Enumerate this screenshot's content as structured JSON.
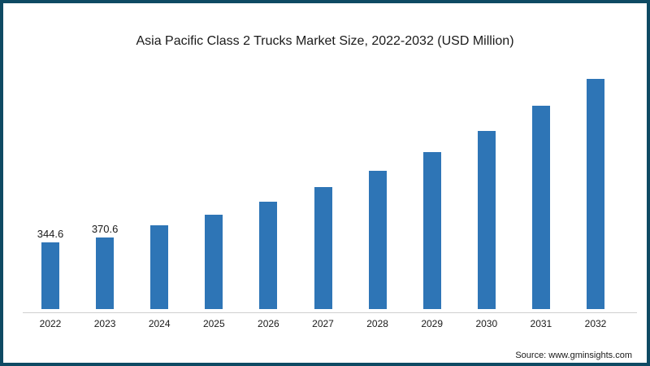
{
  "chart_data": {
    "type": "bar",
    "title": "Asia Pacific Class 2 Trucks Market Size, 2022-2032 (USD Million)",
    "categories": [
      "2022",
      "2023",
      "2024",
      "2025",
      "2026",
      "2027",
      "2028",
      "2029",
      "2030",
      "2031",
      "2032"
    ],
    "values": [
      344.6,
      370.6,
      433,
      487,
      555,
      630,
      714,
      811,
      920,
      1050,
      1189
    ],
    "data_labels": {
      "2022": "344.6",
      "2023": "370.6"
    },
    "xlabel": "",
    "ylabel": "",
    "ylim": [
      0,
      1300
    ],
    "grid": false,
    "legend": null,
    "bar_color": "#2e75b6"
  },
  "source": "Source: www.gminsights.com",
  "colors": {
    "border": "#0e4a63",
    "bar": "#2e75b6",
    "axis": "#d0d0d0"
  }
}
